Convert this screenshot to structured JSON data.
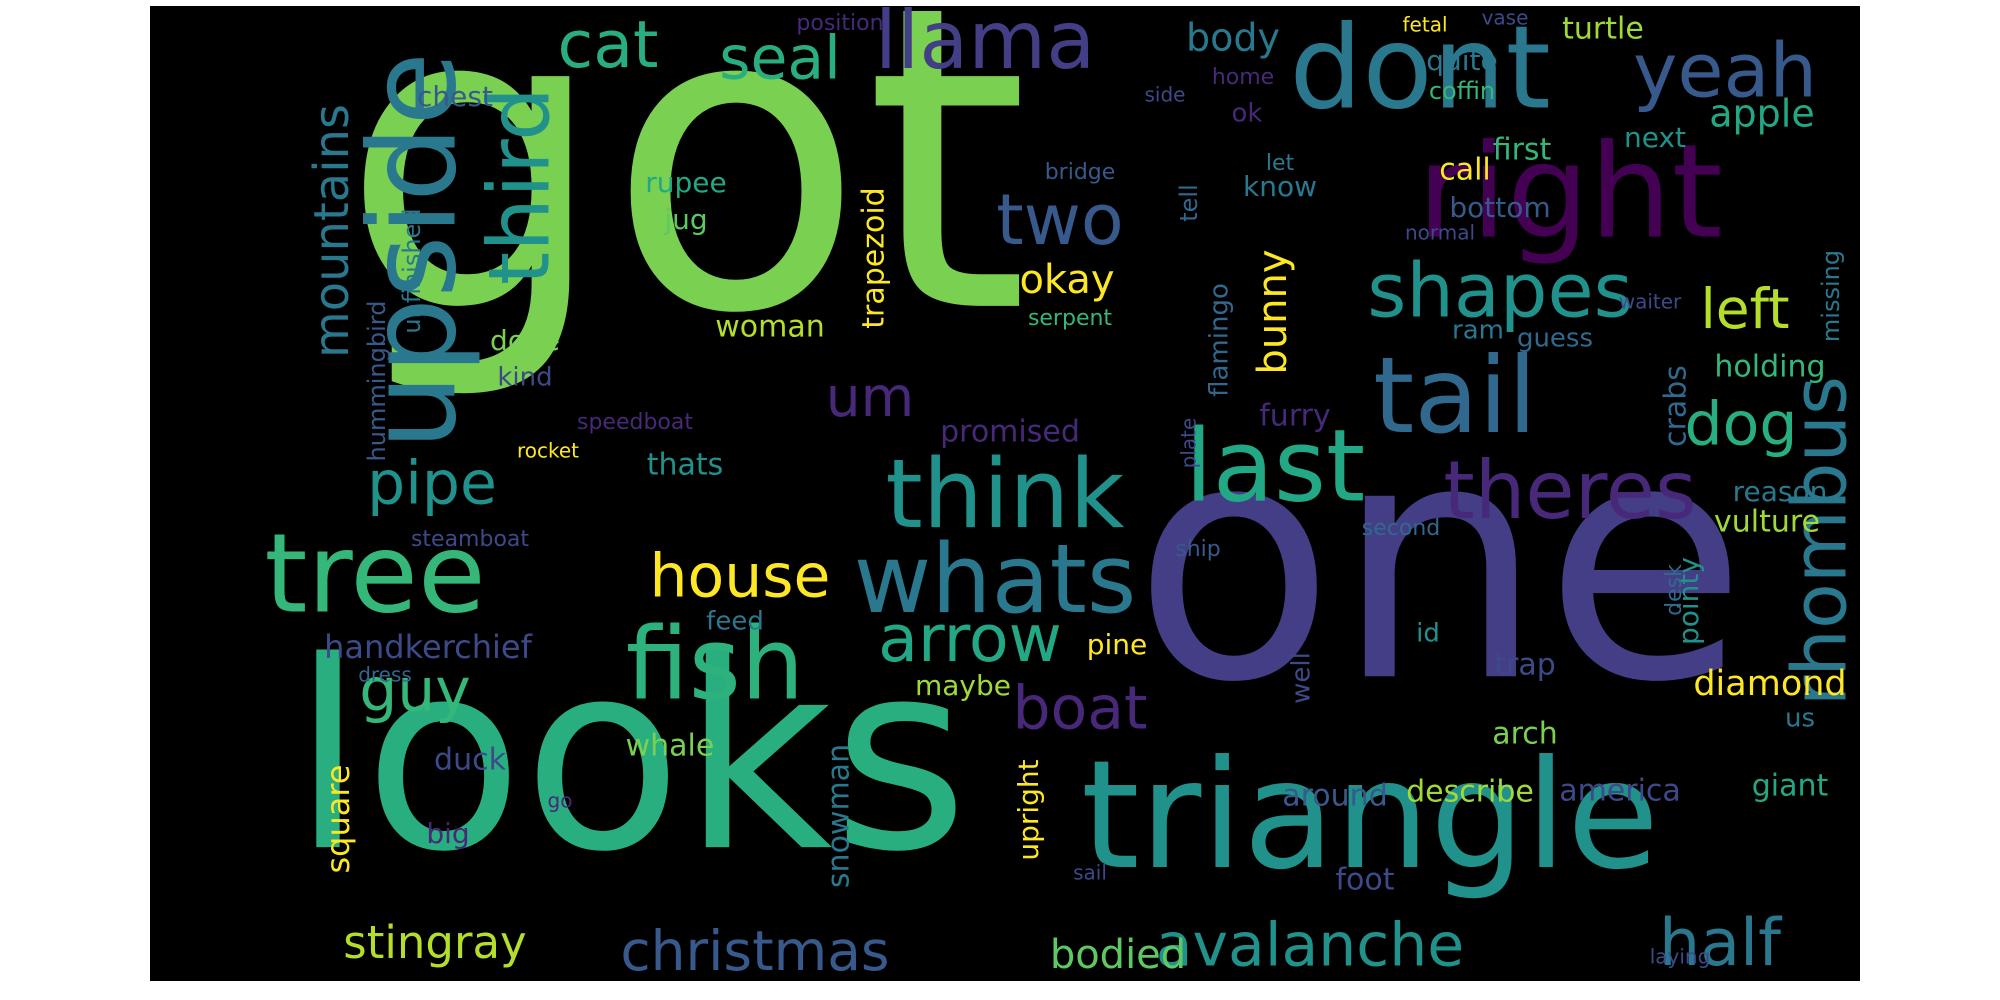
{
  "wordcloud": {
    "background": "#000000",
    "palette": "viridis",
    "words": [
      {
        "text": "got",
        "color": "#7ad151"
      },
      {
        "text": "one",
        "color": "#433e85"
      },
      {
        "text": "looks",
        "color": "#29af7f"
      },
      {
        "text": "triangle",
        "color": "#21918c"
      },
      {
        "text": "upside",
        "color": "#2a788e"
      },
      {
        "text": "dont",
        "color": "#2a788e"
      },
      {
        "text": "right",
        "color": "#440154"
      },
      {
        "text": "tree",
        "color": "#35b779"
      },
      {
        "text": "fish",
        "color": "#2db27d"
      },
      {
        "text": "tail",
        "color": "#31688e"
      },
      {
        "text": "last",
        "color": "#22a884"
      },
      {
        "text": "think",
        "color": "#21918c"
      },
      {
        "text": "whats",
        "color": "#2a788e"
      },
      {
        "text": "third",
        "color": "#21918c"
      },
      {
        "text": "llama",
        "color": "#433e85"
      },
      {
        "text": "yeah",
        "color": "#38598c"
      },
      {
        "text": "shapes",
        "color": "#21918c"
      },
      {
        "text": "theres",
        "color": "#482878"
      },
      {
        "text": "rhombus",
        "color": "#2a788e"
      },
      {
        "text": "house",
        "color": "#fde725"
      },
      {
        "text": "guy",
        "color": "#35b779"
      },
      {
        "text": "arrow",
        "color": "#22a884"
      },
      {
        "text": "two",
        "color": "#38598c"
      },
      {
        "text": "cat",
        "color": "#29af7f"
      },
      {
        "text": "seal",
        "color": "#29af7f"
      },
      {
        "text": "pipe",
        "color": "#21918c"
      },
      {
        "text": "boat",
        "color": "#482878"
      },
      {
        "text": "avalanche",
        "color": "#21918c"
      },
      {
        "text": "christmas",
        "color": "#38598c"
      },
      {
        "text": "half",
        "color": "#2a788e"
      },
      {
        "text": "dog",
        "color": "#29af7f"
      },
      {
        "text": "left",
        "color": "#b5de2b"
      },
      {
        "text": "um",
        "color": "#482878"
      },
      {
        "text": "mountains",
        "color": "#2a788e"
      },
      {
        "text": "stingray",
        "color": "#b5de2b"
      },
      {
        "text": "bodied",
        "color": "#5ec962"
      },
      {
        "text": "okay",
        "color": "#fde725"
      },
      {
        "text": "bunny",
        "color": "#fde725"
      },
      {
        "text": "body",
        "color": "#2a788e"
      },
      {
        "text": "apple",
        "color": "#22a884"
      },
      {
        "text": "diamond",
        "color": "#fde725"
      },
      {
        "text": "whale",
        "color": "#7ad151"
      },
      {
        "text": "square",
        "color": "#fde725"
      },
      {
        "text": "turtle",
        "color": "#a0da39"
      },
      {
        "text": "handkerchief",
        "color": "#3e4989"
      },
      {
        "text": "promised",
        "color": "#482878"
      },
      {
        "text": "snowman",
        "color": "#2a788e"
      },
      {
        "text": "duck",
        "color": "#3e4989"
      },
      {
        "text": "describe",
        "color": "#a0da39"
      },
      {
        "text": "america",
        "color": "#3e4989"
      },
      {
        "text": "around",
        "color": "#38598c"
      },
      {
        "text": "foot",
        "color": "#3e4989"
      },
      {
        "text": "trapezoid",
        "color": "#fde725"
      },
      {
        "text": "holding",
        "color": "#35b779"
      },
      {
        "text": "crabs",
        "color": "#31688e"
      },
      {
        "text": "vulture",
        "color": "#a0da39"
      },
      {
        "text": "giant",
        "color": "#22a884"
      },
      {
        "text": "arch",
        "color": "#7ad151"
      },
      {
        "text": "trap",
        "color": "#3e4989"
      },
      {
        "text": "furry",
        "color": "#482878"
      },
      {
        "text": "reason",
        "color": "#2a788e"
      },
      {
        "text": "woman",
        "color": "#b5de2b"
      },
      {
        "text": "thats",
        "color": "#21918c"
      },
      {
        "text": "first",
        "color": "#35b779"
      },
      {
        "text": "next",
        "color": "#21918c"
      },
      {
        "text": "call",
        "color": "#fde725"
      },
      {
        "text": "bottom",
        "color": "#38598c"
      },
      {
        "text": "know",
        "color": "#2a788e"
      },
      {
        "text": "chest",
        "color": "#38598c"
      },
      {
        "text": "quite",
        "color": "#2a788e"
      },
      {
        "text": "coffin",
        "color": "#35b779"
      },
      {
        "text": "rupee",
        "color": "#22a884"
      },
      {
        "text": "jug",
        "color": "#5ec962"
      },
      {
        "text": "unfinished",
        "color": "#2a788e"
      },
      {
        "text": "hummingbird",
        "color": "#38598c"
      },
      {
        "text": "done",
        "color": "#7ad151"
      },
      {
        "text": "kind",
        "color": "#3e4989"
      },
      {
        "text": "maybe",
        "color": "#a0da39"
      },
      {
        "text": "pine",
        "color": "#fde725"
      },
      {
        "text": "feed",
        "color": "#2a788e"
      },
      {
        "text": "big",
        "color": "#482878"
      },
      {
        "text": "upright",
        "color": "#fde725"
      },
      {
        "text": "flamingo",
        "color": "#31688e"
      },
      {
        "text": "pointy",
        "color": "#21918c"
      },
      {
        "text": "desk",
        "color": "#31688e"
      },
      {
        "text": "missing",
        "color": "#2a788e"
      },
      {
        "text": "guess",
        "color": "#31688e"
      },
      {
        "text": "ram",
        "color": "#2a788e"
      },
      {
        "text": "tell",
        "color": "#31688e"
      },
      {
        "text": "well",
        "color": "#3e4989"
      },
      {
        "text": "id",
        "color": "#21918c"
      },
      {
        "text": "us",
        "color": "#2a788e"
      },
      {
        "text": "ok",
        "color": "#482878"
      },
      {
        "text": "serpent",
        "color": "#35b779"
      },
      {
        "text": "speedboat",
        "color": "#482878"
      },
      {
        "text": "rocket",
        "color": "#fde725"
      },
      {
        "text": "steamboat",
        "color": "#3e4989"
      },
      {
        "text": "ship",
        "color": "#38598c"
      },
      {
        "text": "second",
        "color": "#31688e"
      },
      {
        "text": "bridge",
        "color": "#38598c"
      },
      {
        "text": "let",
        "color": "#2a788e"
      },
      {
        "text": "normal",
        "color": "#3e4989"
      },
      {
        "text": "waiter",
        "color": "#3e4989"
      },
      {
        "text": "home",
        "color": "#482878"
      },
      {
        "text": "side",
        "color": "#3e4989"
      },
      {
        "text": "position",
        "color": "#482878"
      },
      {
        "text": "fetal",
        "color": "#fde725"
      },
      {
        "text": "vase",
        "color": "#3e4989"
      },
      {
        "text": "plate",
        "color": "#3e4989"
      },
      {
        "text": "dress",
        "color": "#31688e"
      },
      {
        "text": "go",
        "color": "#482878"
      },
      {
        "text": "sail",
        "color": "#3e4989"
      },
      {
        "text": "laying",
        "color": "#3e4989"
      }
    ]
  }
}
